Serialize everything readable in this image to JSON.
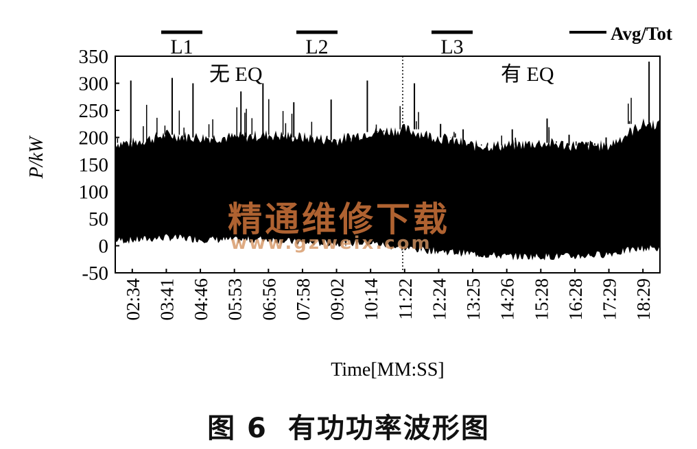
{
  "chart_data": {
    "type": "line",
    "title": "",
    "xlabel": "Time[MM:SS]",
    "ylabel": "P/kW",
    "ylim": [
      -50,
      350
    ],
    "yticks": [
      -50,
      0,
      50,
      100,
      150,
      200,
      250,
      300,
      350
    ],
    "categories": [
      "02:34",
      "03:41",
      "04:46",
      "05:53",
      "06:56",
      "07:58",
      "09:02",
      "10:14",
      "11:22",
      "12:24",
      "13:25",
      "14:26",
      "15:28",
      "16:28",
      "17:29",
      "18:29"
    ],
    "legend": {
      "label": "Avg/Tot",
      "position": "top-right"
    },
    "grid": false,
    "series": [
      {
        "name": "Avg/Tot",
        "values_upper": [
          190,
          205,
          200,
          200,
          205,
          200,
          195,
          210,
          215,
          200,
          185,
          185,
          190,
          185,
          185,
          225
        ],
        "values_lower": [
          10,
          15,
          12,
          10,
          12,
          5,
          5,
          5,
          -5,
          -10,
          -15,
          -20,
          -20,
          -20,
          -15,
          -5
        ],
        "peaks": [
          305,
          310,
          300,
          285,
          300,
          265,
          270,
          305,
          300,
          225,
          215,
          215,
          235,
          205,
          200,
          340
        ]
      }
    ],
    "annotations": {
      "segments": [
        "L1",
        "L2",
        "L3"
      ],
      "without_eq": "无 EQ",
      "with_eq": "有 EQ"
    }
  },
  "caption": {
    "number": "图 6",
    "text": "有功功率波形图"
  },
  "watermark": {
    "line1": "精通维修下载",
    "line2": "www.gzweix.com"
  },
  "colors": {
    "trace": "#000000",
    "watermark": "#d6783c"
  }
}
